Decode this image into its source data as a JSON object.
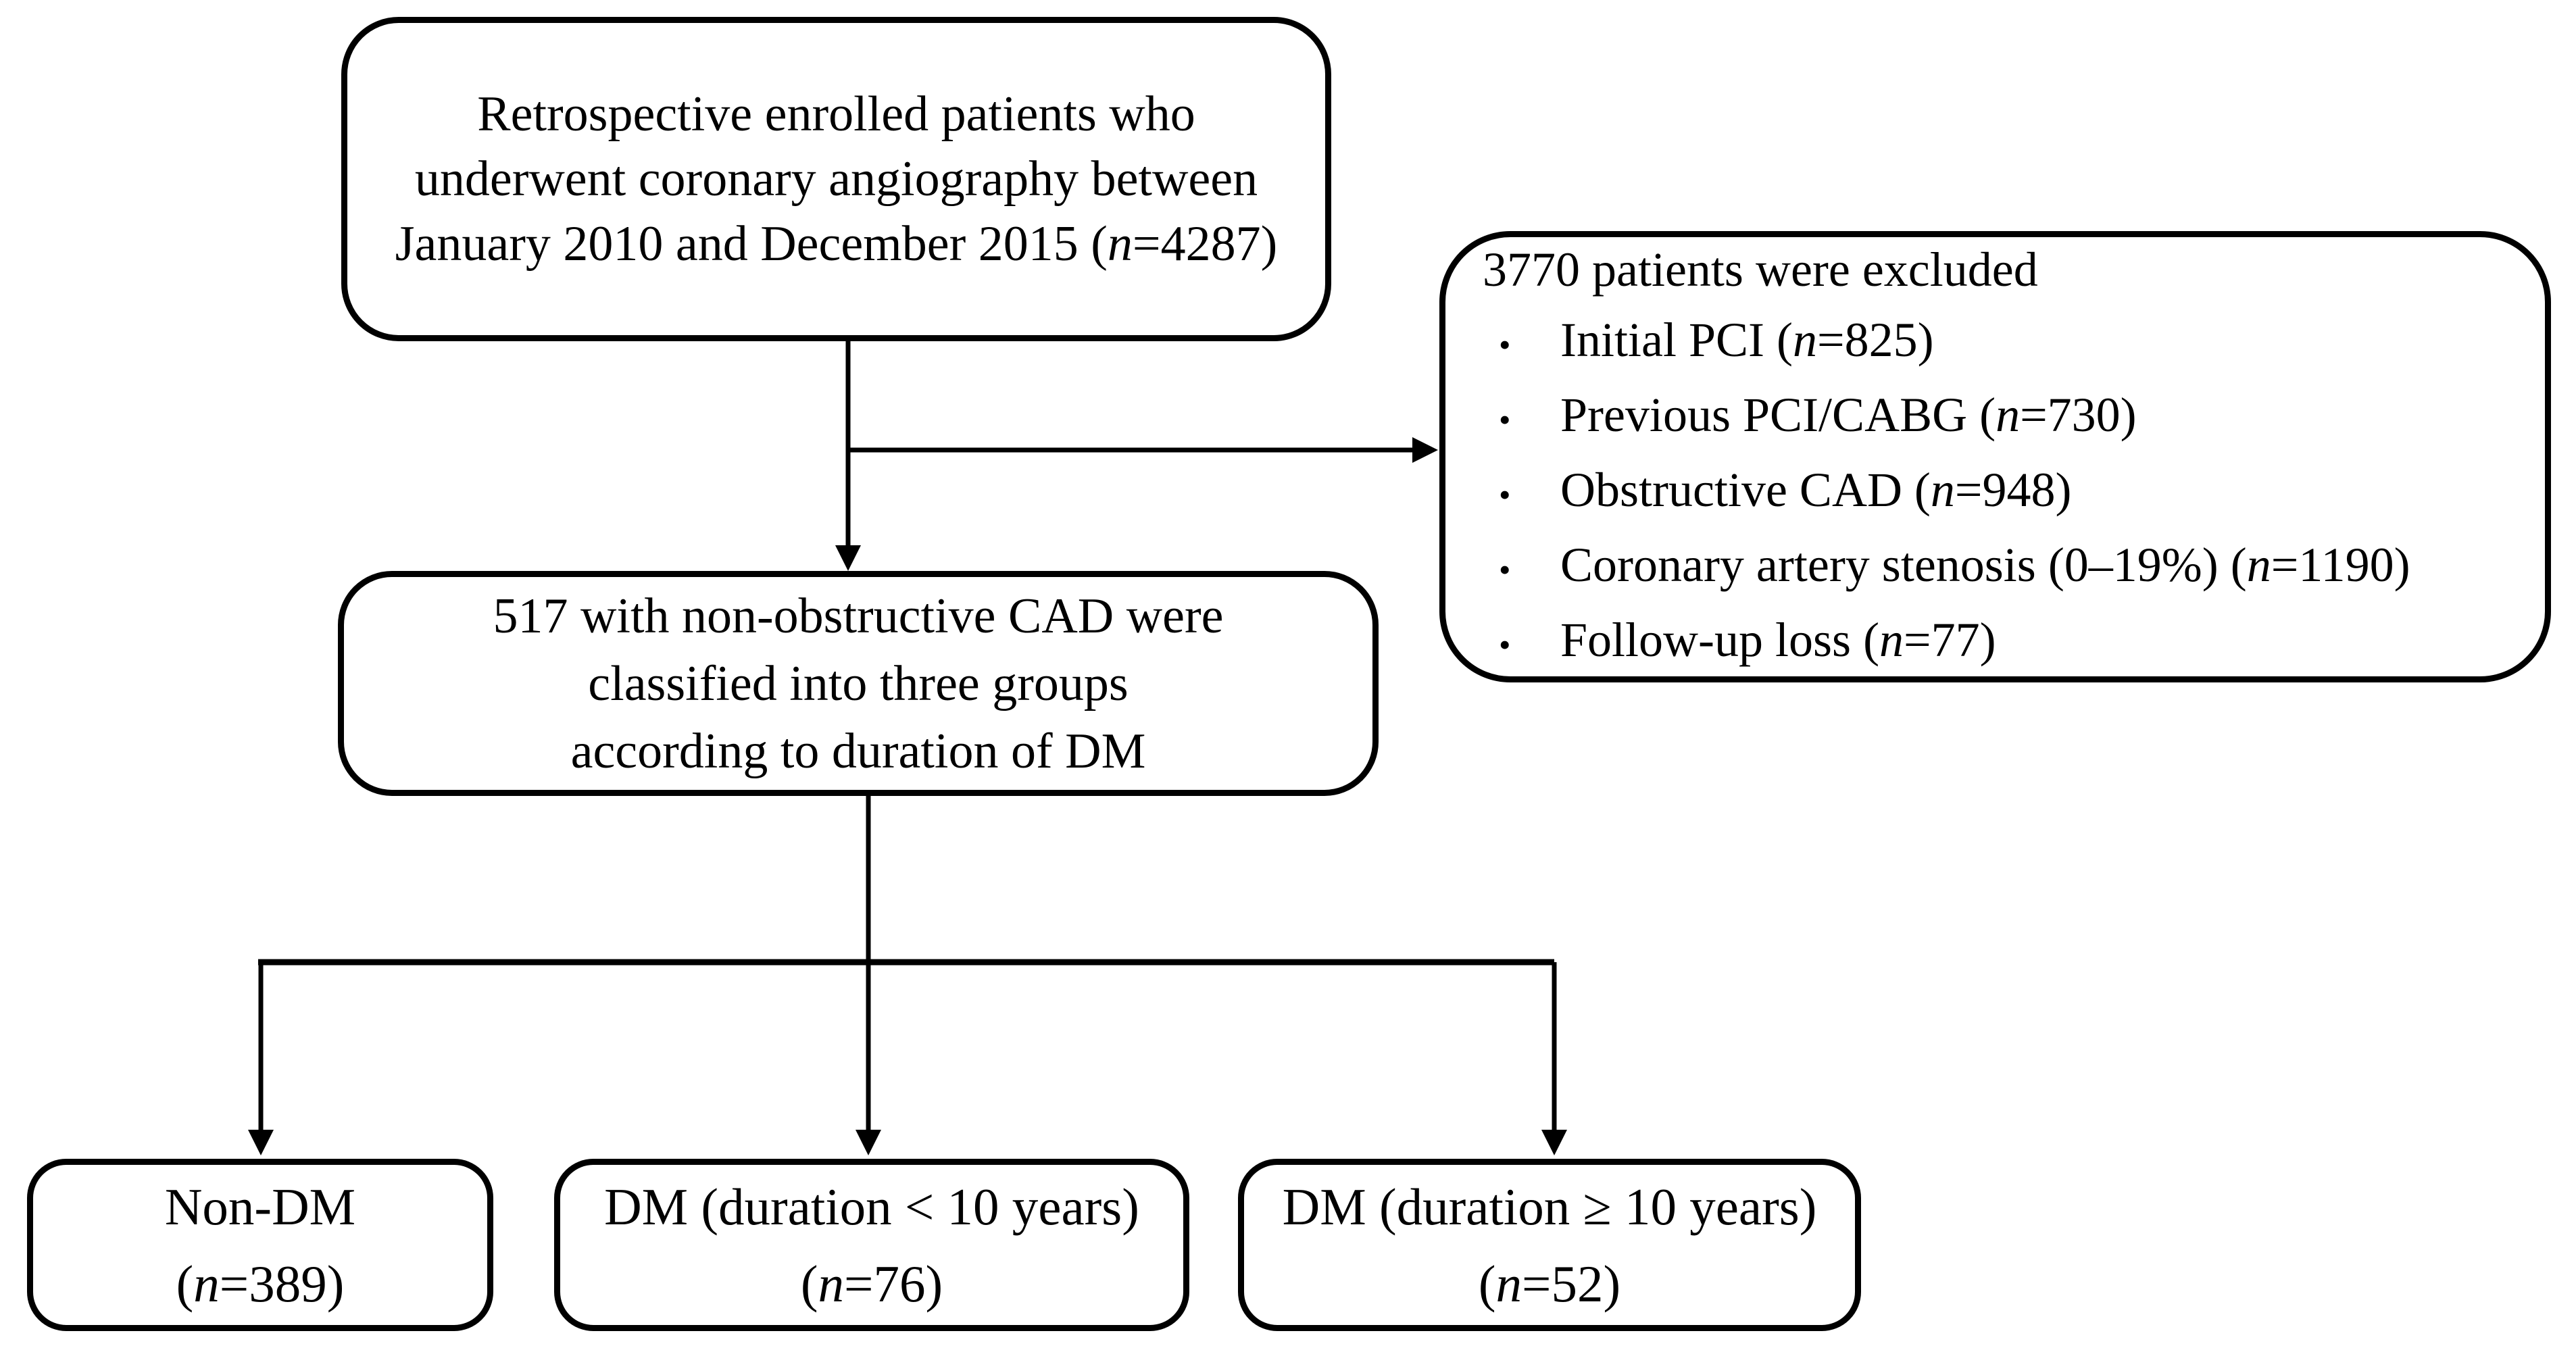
{
  "figure": {
    "background": "#ffffff",
    "stroke_color": "#000000",
    "text_color": "#000000",
    "bullet": "•",
    "enrollment_box": {
      "lines": [
        [
          {
            "t": "Retrospective enrolled patients who"
          }
        ],
        [
          {
            "t": "underwent coronary angiography between"
          }
        ],
        [
          {
            "t": "January 2010 and December 2015 ("
          },
          {
            "t": "n",
            "i": true
          },
          {
            "t": "=4287)"
          }
        ]
      ]
    },
    "exclusion_box": {
      "title": [
        {
          "t": "3770 patients were excluded"
        }
      ],
      "items": [
        [
          {
            "t": "Initial PCI ("
          },
          {
            "t": "n",
            "i": true
          },
          {
            "t": "=825)"
          }
        ],
        [
          {
            "t": "Previous PCI/CABG ("
          },
          {
            "t": "n",
            "i": true
          },
          {
            "t": "=730)"
          }
        ],
        [
          {
            "t": "Obstructive CAD ("
          },
          {
            "t": "n",
            "i": true
          },
          {
            "t": "=948)"
          }
        ],
        [
          {
            "t": "Coronary artery stenosis (0–19%) ("
          },
          {
            "t": "n",
            "i": true
          },
          {
            "t": "=1190)"
          }
        ],
        [
          {
            "t": "Follow-up loss ("
          },
          {
            "t": "n",
            "i": true
          },
          {
            "t": "=77)"
          }
        ]
      ]
    },
    "classification_box": {
      "lines": [
        [
          {
            "t": "517 with non-obstructive CAD were"
          }
        ],
        [
          {
            "t": "classified into three groups"
          }
        ],
        [
          {
            "t": "according to duration of DM"
          }
        ]
      ]
    },
    "group_boxes": [
      {
        "id": "non-dm",
        "lines": [
          [
            {
              "t": "Non-DM"
            }
          ],
          [
            {
              "t": "("
            },
            {
              "t": "n",
              "i": true
            },
            {
              "t": "=389)"
            }
          ]
        ]
      },
      {
        "id": "dm-duration-lt-10",
        "lines": [
          [
            {
              "t": "DM (duration < 10 years)"
            }
          ],
          [
            {
              "t": "("
            },
            {
              "t": "n",
              "i": true
            },
            {
              "t": "=76)"
            }
          ]
        ]
      },
      {
        "id": "dm-duration-ge-10",
        "lines": [
          [
            {
              "t": "DM (duration ≥ 10 years)"
            }
          ],
          [
            {
              "t": "("
            },
            {
              "t": "n",
              "i": true
            },
            {
              "t": "=52)"
            }
          ]
        ]
      }
    ]
  }
}
